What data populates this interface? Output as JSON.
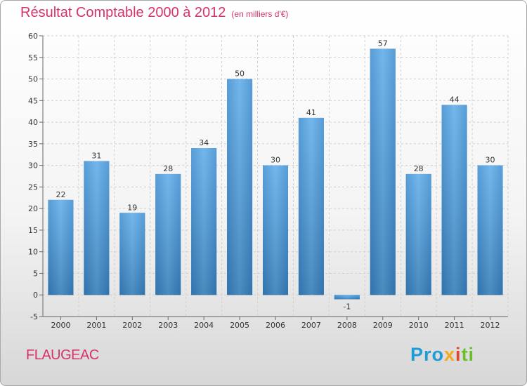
{
  "chart_data": {
    "type": "bar",
    "title": "Résultat Comptable 2000 à 2012",
    "subtitle": "(en milliers d'€)",
    "categories": [
      "2000",
      "2001",
      "2002",
      "2003",
      "2004",
      "2005",
      "2006",
      "2007",
      "2008",
      "2009",
      "2010",
      "2011",
      "2012"
    ],
    "values": [
      22,
      31,
      19,
      28,
      34,
      50,
      30,
      41,
      -1,
      57,
      28,
      44,
      30
    ],
    "ylim": [
      -5,
      60
    ],
    "yticks": [
      -5,
      0,
      5,
      10,
      15,
      20,
      25,
      30,
      35,
      40,
      45,
      50,
      55,
      60
    ],
    "grid": true,
    "bar_color": "#4a9fe0"
  },
  "commune": "FLAUGEAC",
  "logo": {
    "text": "Proxiti",
    "parts": [
      "Pro",
      "x",
      "i",
      "ti"
    ]
  }
}
